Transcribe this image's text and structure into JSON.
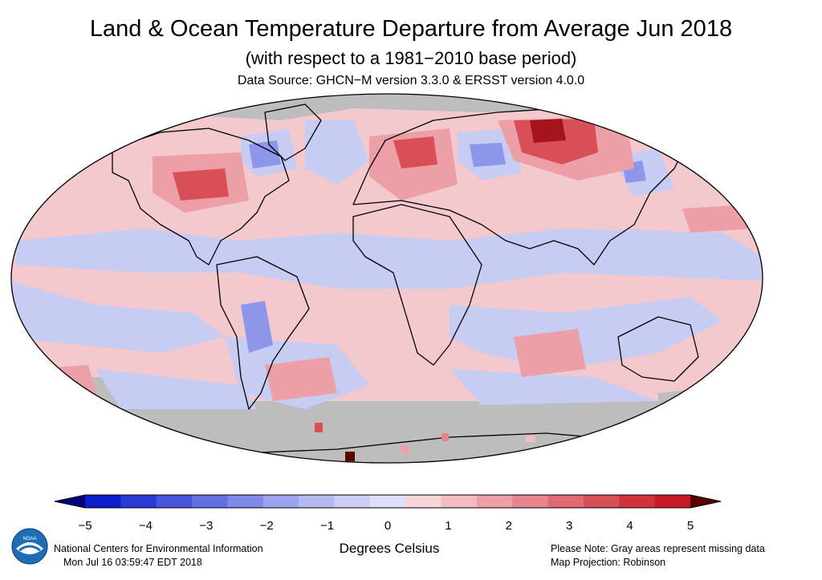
{
  "header": {
    "title": "Land & Ocean Temperature Departure from Average Jun 2018",
    "subtitle": "(with respect to a 1981−2010 base period)",
    "source": "Data Source: GHCN−M version 3.3.0 & ERSST version 4.0.0"
  },
  "legend": {
    "axis_title": "Degrees Celsius",
    "tick_labels": [
      "−5",
      "−4",
      "−3",
      "−2",
      "−1",
      "0",
      "1",
      "2",
      "3",
      "4",
      "5"
    ],
    "colors": [
      "#0b1ec9",
      "#2a3ad4",
      "#4755dc",
      "#6470e2",
      "#8089e7",
      "#9ca3ec",
      "#b4baf0",
      "#cbcff4",
      "#dde0f8",
      "#f7d5d8",
      "#f2bcc1",
      "#ec9fa6",
      "#e5858d",
      "#df6a73",
      "#d84f58",
      "#d1333d",
      "#c81a24"
    ],
    "under_color": "#00007a",
    "over_color": "#5a0000"
  },
  "map": {
    "missing_color": "#bdbdbd",
    "coastline_color": "#000000"
  },
  "footer": {
    "organization": "National Centers for Environmental Information",
    "timestamp": "Mon Jul 16 03:59:47 EDT 2018",
    "note": "Please Note: Gray areas represent missing data",
    "projection": "Map Projection: Robinson",
    "logo_text": "NOAA"
  }
}
